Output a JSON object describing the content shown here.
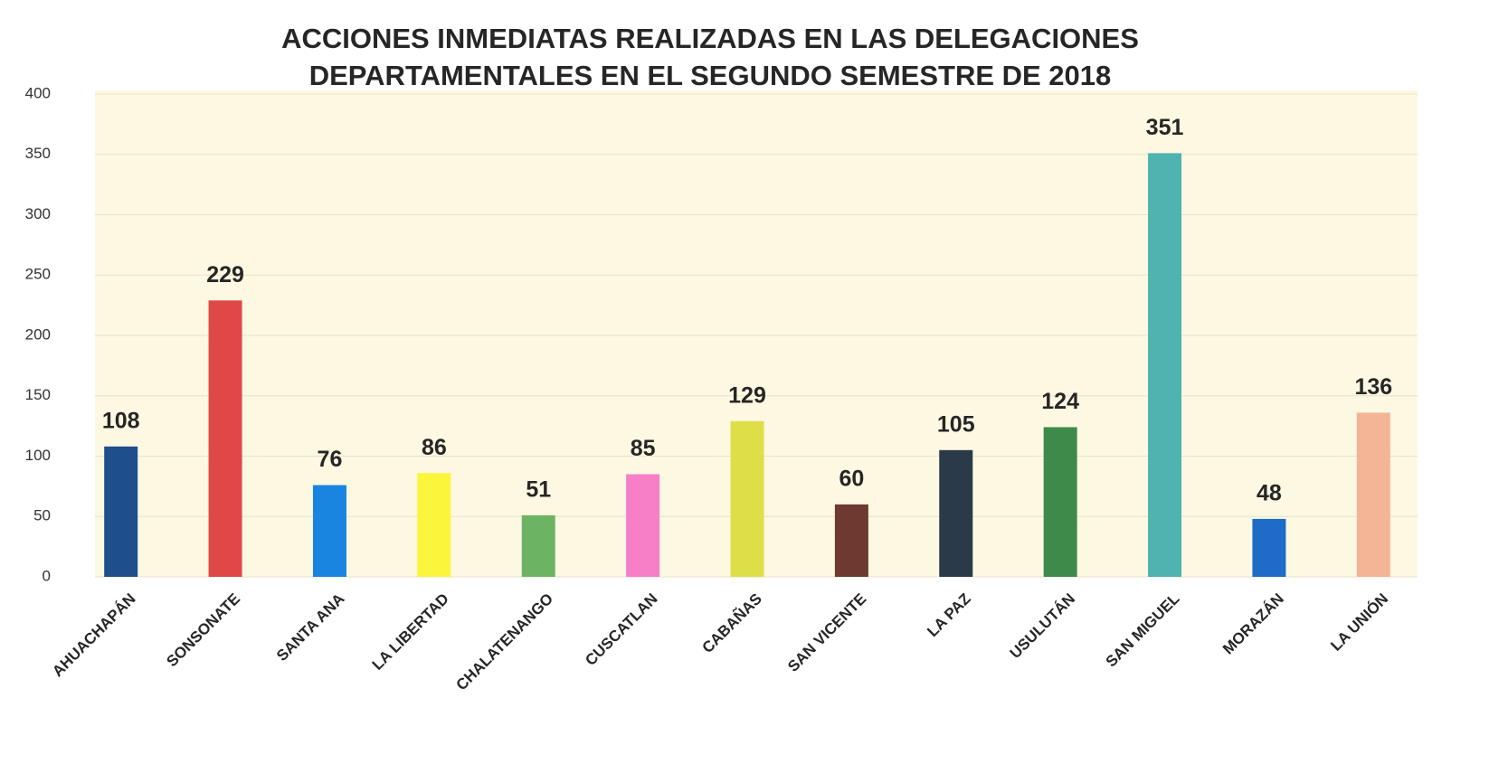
{
  "chart_data": {
    "type": "bar",
    "title": [
      "ACCIONES INMEDIATAS REALIZADAS EN LAS DELEGACIONES",
      "DEPARTAMENTALES EN EL SEGUNDO SEMESTRE DE 2018"
    ],
    "categories": [
      "AHUACHAPÁN",
      "SONSONATE",
      "SANTA ANA",
      "LA LIBERTAD",
      "CHALATENANGO",
      "CUSCATLAN",
      "CABAÑAS",
      "SAN VICENTE",
      "LA PAZ",
      "USULUTÁN",
      "SAN MIGUEL",
      "MORAZÁN",
      "LA UNIÓN"
    ],
    "values": [
      108,
      229,
      76,
      86,
      51,
      85,
      129,
      60,
      105,
      124,
      351,
      48,
      136
    ],
    "colors": [
      "#1f4e8c",
      "#e04848",
      "#1a85e0",
      "#fbf53c",
      "#6cb464",
      "#f67fc8",
      "#dede48",
      "#6e3a30",
      "#2a3a48",
      "#3e8a4a",
      "#4fb3b0",
      "#1e6cc8",
      "#f4b496"
    ],
    "ylim": [
      0,
      400
    ],
    "yticks": [
      0,
      50,
      100,
      150,
      200,
      250,
      300,
      350,
      400
    ],
    "grid": true
  }
}
